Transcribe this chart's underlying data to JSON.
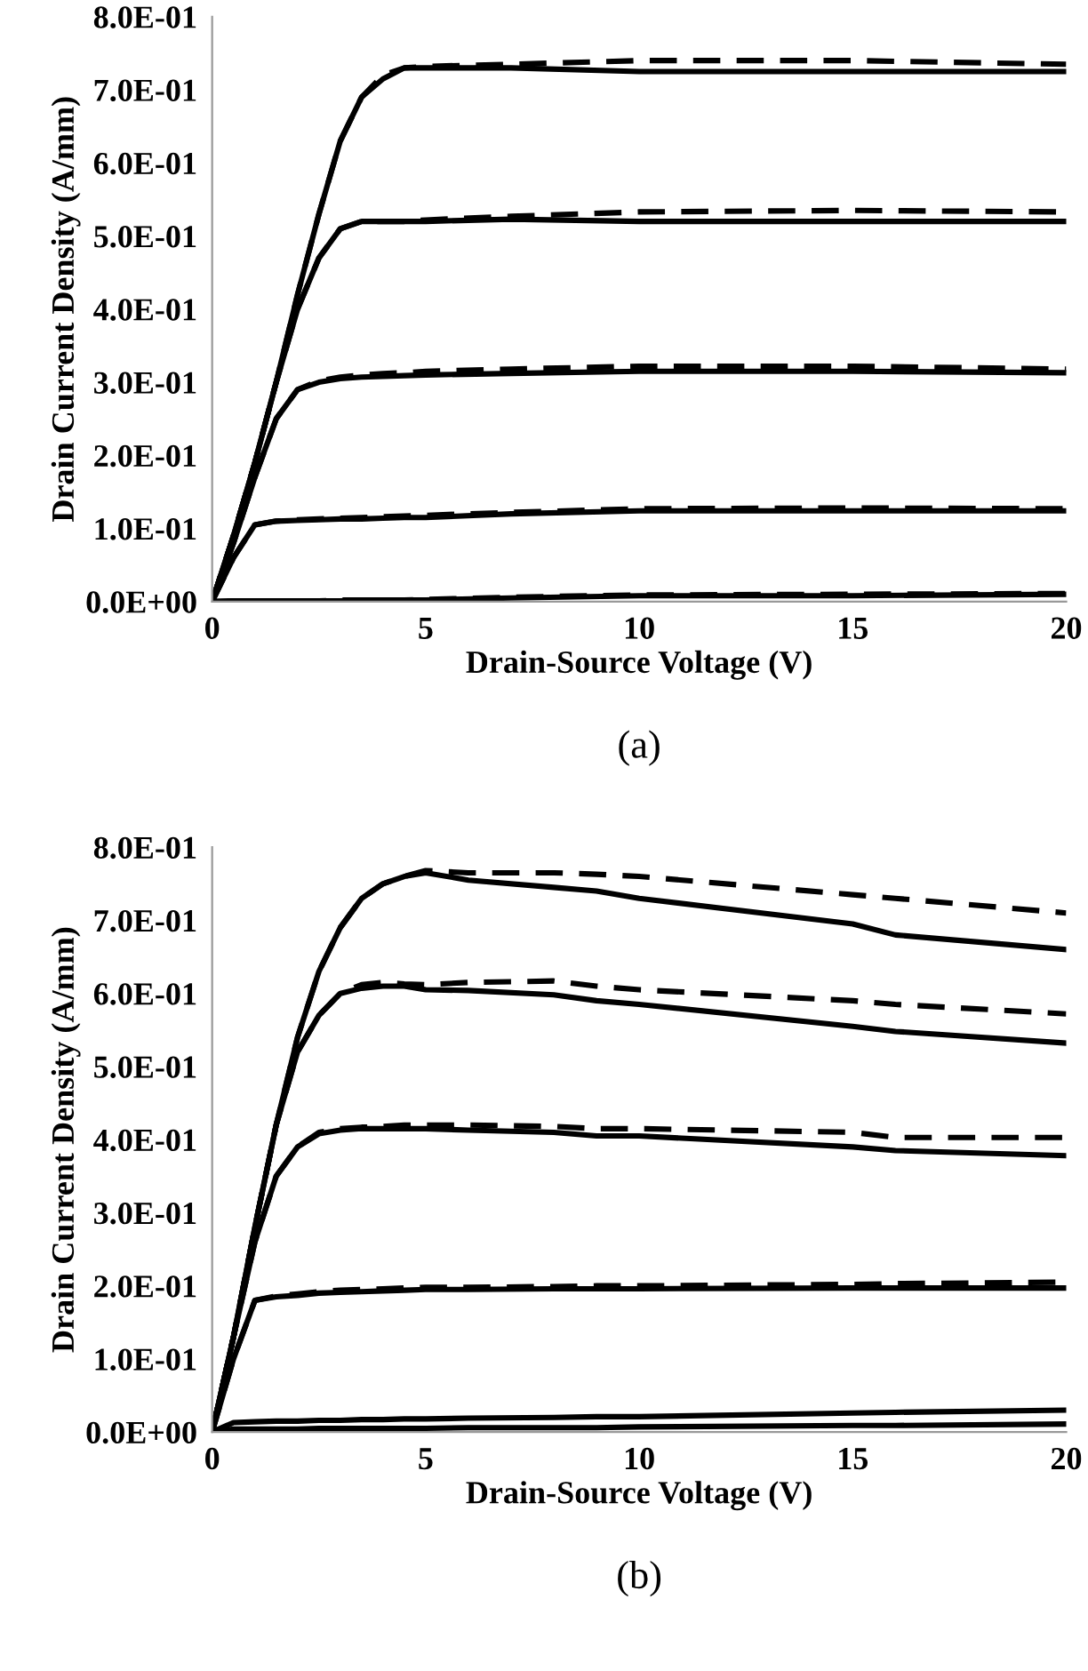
{
  "chart_data": [
    {
      "type": "line",
      "xlabel": "Drain-Source Voltage (V)",
      "ylabel": "Drain Current Density (A/mm)",
      "annotations": [
        "(a)"
      ],
      "grid": false,
      "marker": "none",
      "x": [
        0,
        0.5,
        1,
        1.5,
        2,
        2.5,
        3,
        3.5,
        4,
        4.5,
        5,
        7,
        10,
        15,
        20
      ],
      "xlim": [
        0,
        20
      ],
      "xticks": [
        0,
        5,
        10,
        15,
        20
      ],
      "ylim": [
        0,
        0.8
      ],
      "yticks": [
        {
          "value": 0,
          "label": "0.0E+00"
        },
        {
          "value": 0.1,
          "label": "1.0E-01"
        },
        {
          "value": 0.2,
          "label": "2.0E-01"
        },
        {
          "value": 0.3,
          "label": "3.0E-01"
        },
        {
          "value": 0.4,
          "label": "4.0E-01"
        },
        {
          "value": 0.5,
          "label": "5.0E-01"
        },
        {
          "value": 0.6,
          "label": "6.0E-01"
        },
        {
          "value": 0.7,
          "label": "7.0E-01"
        },
        {
          "value": 0.8,
          "label": "8.0E-01"
        }
      ],
      "series": [
        {
          "color": "#000000",
          "line_style": "solid",
          "values": [
            0,
            0.09,
            0.19,
            0.3,
            0.42,
            0.53,
            0.63,
            0.69,
            0.715,
            0.73,
            0.73,
            0.73,
            0.725,
            0.725,
            0.725
          ]
        },
        {
          "color": "#000000",
          "line_style": "dashed",
          "values": [
            0,
            0.09,
            0.19,
            0.3,
            0.42,
            0.53,
            0.63,
            0.69,
            0.72,
            0.73,
            0.732,
            0.735,
            0.74,
            0.74,
            0.735
          ]
        },
        {
          "color": "#000000",
          "line_style": "solid",
          "values": [
            0,
            0.09,
            0.19,
            0.3,
            0.4,
            0.47,
            0.51,
            0.52,
            0.52,
            0.52,
            0.52,
            0.523,
            0.52,
            0.52,
            0.52
          ]
        },
        {
          "color": "#000000",
          "line_style": "dashed",
          "values": [
            0,
            0.09,
            0.19,
            0.3,
            0.4,
            0.47,
            0.51,
            0.52,
            0.52,
            0.52,
            0.522,
            0.527,
            0.533,
            0.535,
            0.533
          ]
        },
        {
          "color": "#000000",
          "line_style": "solid",
          "values": [
            0,
            0.08,
            0.17,
            0.25,
            0.29,
            0.3,
            0.305,
            0.307,
            0.308,
            0.309,
            0.31,
            0.312,
            0.315,
            0.315,
            0.313
          ]
        },
        {
          "color": "#000000",
          "line_style": "dashed",
          "values": [
            0,
            0.08,
            0.17,
            0.25,
            0.29,
            0.302,
            0.307,
            0.31,
            0.312,
            0.313,
            0.315,
            0.318,
            0.322,
            0.322,
            0.318
          ]
        },
        {
          "color": "#000000",
          "line_style": "solid",
          "values": [
            0,
            0.06,
            0.105,
            0.11,
            0.111,
            0.112,
            0.113,
            0.113,
            0.114,
            0.115,
            0.115,
            0.12,
            0.124,
            0.124,
            0.124
          ]
        },
        {
          "color": "#000000",
          "line_style": "dashed",
          "values": [
            0,
            0.06,
            0.105,
            0.11,
            0.112,
            0.113,
            0.114,
            0.115,
            0.116,
            0.117,
            0.118,
            0.122,
            0.127,
            0.128,
            0.127
          ]
        },
        {
          "color": "#000000",
          "line_style": "solid",
          "values": [
            0,
            0.001,
            0.001,
            0.001,
            0.001,
            0.001,
            0.001,
            0.002,
            0.002,
            0.002,
            0.002,
            0.005,
            0.008,
            0.008,
            0.01
          ]
        },
        {
          "color": "#000000",
          "line_style": "dashed",
          "values": [
            0,
            0.001,
            0.001,
            0.001,
            0.001,
            0.001,
            0.002,
            0.002,
            0.002,
            0.002,
            0.003,
            0.006,
            0.009,
            0.01,
            0.011
          ]
        }
      ]
    },
    {
      "type": "line",
      "xlabel": "Drain-Source Voltage (V)",
      "ylabel": "Drain Current Density (A/mm)",
      "annotations": [
        "(b)"
      ],
      "grid": false,
      "marker": "none",
      "x": [
        0,
        0.5,
        1,
        1.5,
        2,
        2.5,
        3,
        3.5,
        4,
        4.5,
        5,
        6,
        8,
        9,
        10,
        15,
        16,
        20
      ],
      "xlim": [
        0,
        20
      ],
      "xticks": [
        0,
        5,
        10,
        15,
        20
      ],
      "ylim": [
        0,
        0.8
      ],
      "yticks": [
        {
          "value": 0,
          "label": "0.0E+00"
        },
        {
          "value": 0.1,
          "label": "1.0E-01"
        },
        {
          "value": 0.2,
          "label": "2.0E-01"
        },
        {
          "value": 0.3,
          "label": "3.0E-01"
        },
        {
          "value": 0.4,
          "label": "4.0E-01"
        },
        {
          "value": 0.5,
          "label": "5.0E-01"
        },
        {
          "value": 0.6,
          "label": "6.0E-01"
        },
        {
          "value": 0.7,
          "label": "7.0E-01"
        },
        {
          "value": 0.8,
          "label": "8.0E-01"
        }
      ],
      "series": [
        {
          "color": "#000000",
          "line_style": "solid",
          "values": [
            0,
            0.13,
            0.28,
            0.42,
            0.54,
            0.63,
            0.69,
            0.73,
            0.75,
            0.76,
            0.765,
            0.755,
            0.745,
            0.74,
            0.73,
            0.695,
            0.68,
            0.66
          ]
        },
        {
          "color": "#000000",
          "line_style": "dashed",
          "values": [
            0,
            0.13,
            0.28,
            0.42,
            0.54,
            0.63,
            0.69,
            0.73,
            0.75,
            0.76,
            0.768,
            0.765,
            0.765,
            0.763,
            0.76,
            0.735,
            0.73,
            0.71
          ]
        },
        {
          "color": "#000000",
          "line_style": "solid",
          "values": [
            0,
            0.13,
            0.28,
            0.42,
            0.52,
            0.57,
            0.6,
            0.607,
            0.61,
            0.61,
            0.605,
            0.604,
            0.598,
            0.59,
            0.585,
            0.555,
            0.548,
            0.532
          ]
        },
        {
          "color": "#000000",
          "line_style": "dashed",
          "values": [
            0,
            0.13,
            0.28,
            0.42,
            0.52,
            0.57,
            0.6,
            0.612,
            0.615,
            0.613,
            0.612,
            0.615,
            0.617,
            0.61,
            0.605,
            0.59,
            0.585,
            0.572
          ]
        },
        {
          "color": "#000000",
          "line_style": "solid",
          "values": [
            0,
            0.13,
            0.26,
            0.35,
            0.39,
            0.408,
            0.413,
            0.415,
            0.415,
            0.415,
            0.415,
            0.413,
            0.41,
            0.405,
            0.405,
            0.39,
            0.385,
            0.378
          ]
        },
        {
          "color": "#000000",
          "line_style": "dashed",
          "values": [
            0,
            0.13,
            0.26,
            0.35,
            0.39,
            0.41,
            0.415,
            0.417,
            0.418,
            0.42,
            0.42,
            0.42,
            0.418,
            0.415,
            0.415,
            0.41,
            0.403,
            0.403
          ]
        },
        {
          "color": "#000000",
          "line_style": "solid",
          "values": [
            0,
            0.1,
            0.18,
            0.185,
            0.187,
            0.19,
            0.191,
            0.192,
            0.193,
            0.194,
            0.195,
            0.195,
            0.196,
            0.196,
            0.196,
            0.197,
            0.197,
            0.197
          ]
        },
        {
          "color": "#000000",
          "line_style": "dashed",
          "values": [
            0,
            0.1,
            0.18,
            0.186,
            0.189,
            0.192,
            0.194,
            0.195,
            0.196,
            0.197,
            0.198,
            0.198,
            0.199,
            0.2,
            0.2,
            0.202,
            0.203,
            0.205
          ]
        },
        {
          "color": "#000000",
          "line_style": "solid",
          "values": [
            0,
            0.013,
            0.014,
            0.015,
            0.015,
            0.016,
            0.016,
            0.017,
            0.017,
            0.018,
            0.018,
            0.019,
            0.02,
            0.021,
            0.021,
            0.026,
            0.027,
            0.03
          ]
        },
        {
          "color": "#000000",
          "line_style": "solid",
          "values": [
            0,
            0.004,
            0.004,
            0.004,
            0.004,
            0.005,
            0.005,
            0.005,
            0.005,
            0.005,
            0.005,
            0.006,
            0.006,
            0.006,
            0.007,
            0.009,
            0.009,
            0.011
          ]
        }
      ]
    }
  ]
}
